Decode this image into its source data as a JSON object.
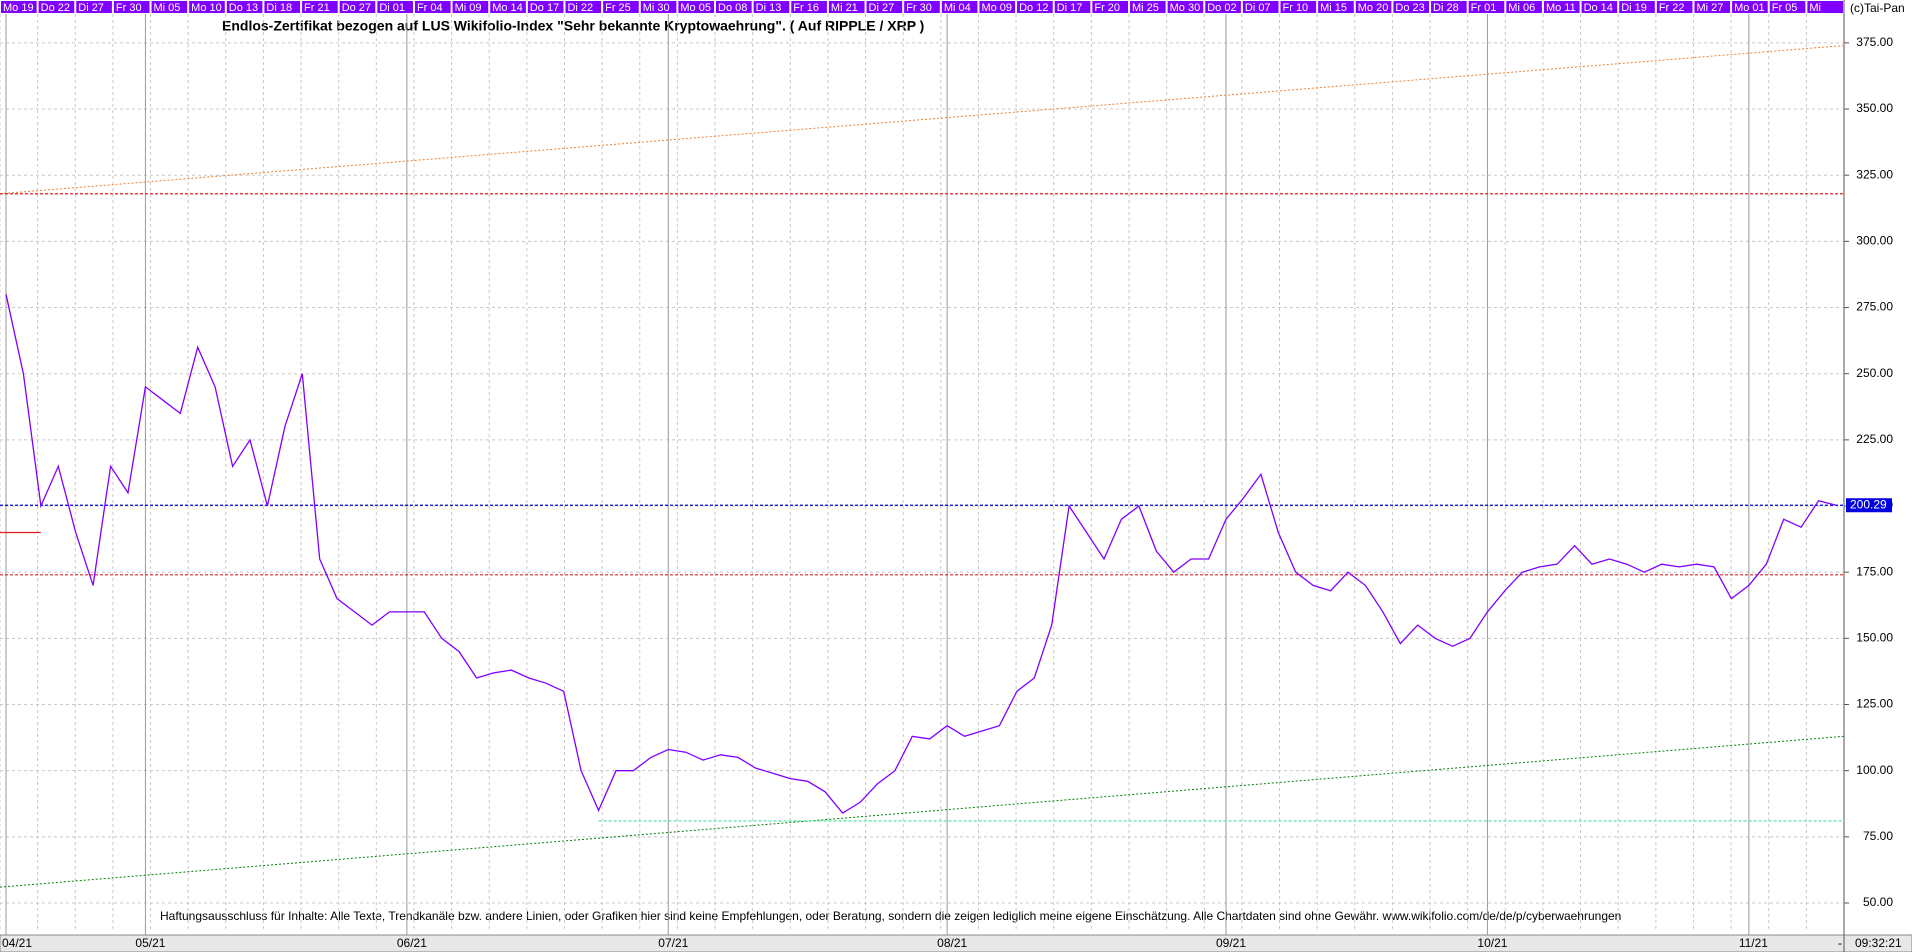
{
  "chart_data": {
    "type": "line",
    "title": "Endlos-Zertifikat bezogen auf LUS Wikifolio-Index \"Sehr bekannte Kryptowaehrung\". ( Auf RIPPLE / XRP )",
    "copyright": "(c)Tai-Pan",
    "disclaimer": "Haftungsausschluss für Inhalte: Alle Texte, Trendkanäle bzw. andere Linien, oder Grafiken hier sind keine Empfehlungen, oder Beratung, sondern die zeigen lediglich meine eigene Einschätzung. Alle Chartdaten sind ohne Gewähr.  www.wikifolio.com/de/de/p/cyberwaehrungen",
    "time_label": "09:32:21",
    "time_marker": "-",
    "day_labels": [
      "Mo 19",
      "Do 22",
      "Di 27",
      "Fr 30",
      "Mi 05",
      "Mo 10",
      "Do 13",
      "Di 18",
      "Fr 21",
      "Do 27",
      "Di 01",
      "Fr 04",
      "Mi 09",
      "Mo 14",
      "Do 17",
      "Di 22",
      "Fr 25",
      "Mi 30",
      "Mo 05",
      "Do 08",
      "Di 13",
      "Fr 16",
      "Mi 21",
      "Di 27",
      "Fr 30",
      "Mi 04",
      "Mo 09",
      "Do 12",
      "Di 17",
      "Fr 20",
      "Mi 25",
      "Mo 30",
      "Do 02",
      "Di 07",
      "Fr 10",
      "Mi 15",
      "Mo 20",
      "Do 23",
      "Di 28",
      "Fr 01",
      "Mi 06",
      "Mo 11",
      "Do 14",
      "Di 19",
      "Fr 22",
      "Mi 27",
      "Mo 01",
      "Fr 05",
      "Mi"
    ],
    "categories": [
      "04/21",
      null,
      null,
      null,
      null,
      null,
      null,
      null,
      "05/21",
      null,
      null,
      null,
      null,
      null,
      null,
      null,
      null,
      null,
      null,
      null,
      null,
      null,
      null,
      "06/21",
      null,
      null,
      null,
      null,
      null,
      null,
      null,
      null,
      null,
      null,
      null,
      null,
      null,
      null,
      "07/21",
      null,
      null,
      null,
      null,
      null,
      null,
      null,
      null,
      null,
      null,
      null,
      null,
      null,
      null,
      null,
      "08/21",
      null,
      null,
      null,
      null,
      null,
      null,
      null,
      null,
      null,
      null,
      null,
      null,
      null,
      null,
      null,
      "09/21",
      null,
      null,
      null,
      null,
      null,
      null,
      null,
      null,
      null,
      null,
      null,
      null,
      null,
      null,
      "10/21",
      null,
      null,
      null,
      null,
      null,
      null,
      null,
      null,
      null,
      null,
      null,
      null,
      null,
      null,
      "11/21",
      null,
      null,
      null,
      null,
      null
    ],
    "series": [
      {
        "name": "RIPPLE / XRP",
        "color": "#8000ff",
        "values": [
          280,
          250,
          200,
          215,
          190,
          170,
          215,
          205,
          245,
          240,
          235,
          260,
          245,
          215,
          225,
          200,
          230,
          250,
          180,
          165,
          160,
          155,
          160,
          160,
          160,
          150,
          145,
          135,
          137,
          138,
          135,
          133,
          130,
          100,
          85,
          100,
          100,
          105,
          108,
          107,
          104,
          106,
          105,
          101,
          99,
          97,
          96,
          92,
          84,
          88,
          95,
          100,
          113,
          112,
          117,
          113,
          115,
          117,
          130,
          135,
          155,
          200,
          190,
          180,
          195,
          200,
          183,
          175,
          180,
          180,
          195,
          203,
          212,
          190,
          175,
          170,
          168,
          175,
          170,
          160,
          148,
          155,
          150,
          147,
          150,
          160,
          168,
          175,
          177,
          178,
          185,
          178,
          180,
          178,
          175,
          178,
          177,
          178,
          177,
          165,
          170,
          178,
          195,
          192,
          202,
          200.29
        ]
      }
    ],
    "last_value": 200.29,
    "hlines": [
      {
        "value": 318,
        "color": "#e02020"
      },
      {
        "value": 174,
        "color": "#e02020"
      },
      {
        "value": 200.29,
        "color": "#0000e0"
      },
      {
        "value": 81,
        "color": "#40e0a0",
        "start": 34
      },
      {
        "value": 190,
        "color": "#e02020",
        "end": 2
      }
    ],
    "trendlines": [
      {
        "from": 318,
        "to": 374,
        "color": "#f08030"
      },
      {
        "from": 56,
        "to": 113,
        "color": "#008000"
      }
    ],
    "ylim": [
      39.8,
      391.2
    ],
    "yticks": [
      {
        "value": 50,
        "label": "50.00"
      },
      {
        "value": 75,
        "label": "75.00"
      },
      {
        "value": 100,
        "label": "100.00"
      },
      {
        "value": 125,
        "label": "125.00"
      },
      {
        "value": 150,
        "label": "150.00"
      },
      {
        "value": 175,
        "label": "175.00"
      },
      {
        "value": 200,
        "label": "200.00"
      },
      {
        "value": 225,
        "label": "225.00"
      },
      {
        "value": 250,
        "label": "250.00"
      },
      {
        "value": 275,
        "label": "275.00"
      },
      {
        "value": 300,
        "label": "300.00"
      },
      {
        "value": 325,
        "label": "325.00"
      },
      {
        "value": 350,
        "label": "350.00"
      },
      {
        "value": 375,
        "label": "375.00"
      }
    ],
    "grid": true
  }
}
